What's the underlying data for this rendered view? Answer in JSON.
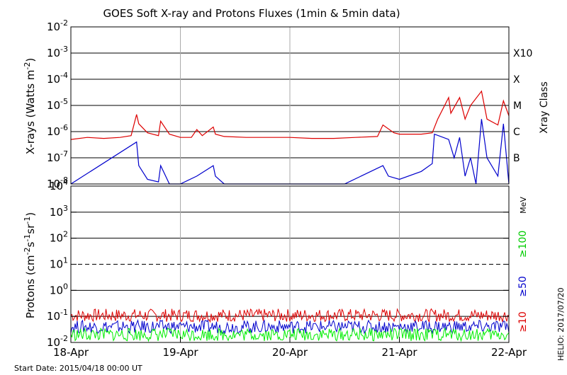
{
  "chart_data": [
    {
      "type": "line",
      "title": "GOES Soft X-ray and Protons Fluxes   (1min & 5min data)",
      "ylabel": "X-rays (Watts m",
      "ylabel_exponent": "-2",
      "yscale": "log",
      "ylim": [
        1e-08,
        0.01
      ],
      "y_ticks": [
        {
          "base": "10",
          "exp": "-8"
        },
        {
          "base": "10",
          "exp": "-7"
        },
        {
          "base": "10",
          "exp": "-6"
        },
        {
          "base": "10",
          "exp": "-5"
        },
        {
          "base": "10",
          "exp": "-4"
        },
        {
          "base": "10",
          "exp": "-3"
        },
        {
          "base": "10",
          "exp": "-2"
        }
      ],
      "xray_class_label": "Xray Class",
      "xray_classes": [
        {
          "label": "B",
          "value": 1e-07
        },
        {
          "label": "C",
          "value": 1e-06
        },
        {
          "label": "M",
          "value": 1e-05
        },
        {
          "label": "X",
          "value": 0.0001
        },
        {
          "label": "X10",
          "value": 0.001
        }
      ],
      "colors": {
        "long": "#dd0000",
        "short": "#0000cc"
      },
      "series": [
        {
          "color": "#dd0000",
          "x": [
            18.0,
            18.15,
            18.3,
            18.45,
            18.55,
            18.6,
            18.62,
            18.7,
            18.8,
            18.82,
            18.9,
            19.0,
            19.1,
            19.15,
            19.2,
            19.3,
            19.32,
            19.4,
            19.6,
            19.8,
            20.0,
            20.2,
            20.4,
            20.6,
            20.8,
            20.85,
            20.95,
            21.0,
            21.2,
            21.3,
            21.35,
            21.45,
            21.47,
            21.55,
            21.6,
            21.65,
            21.75,
            21.8,
            21.9,
            21.95,
            22.0
          ],
          "y": [
            5e-07,
            6e-07,
            5.5e-07,
            6e-07,
            7e-07,
            4.5e-06,
            2e-06,
            9e-07,
            7e-07,
            2.5e-06,
            8e-07,
            6e-07,
            6e-07,
            1.2e-06,
            7e-07,
            1.5e-06,
            8e-07,
            6.5e-07,
            6e-07,
            6e-07,
            6e-07,
            5.5e-07,
            5.5e-07,
            6e-07,
            6.5e-07,
            1.8e-06,
            9e-07,
            8e-07,
            8e-07,
            9e-07,
            3e-06,
            2e-05,
            5e-06,
            2e-05,
            3e-06,
            1e-05,
            3.5e-05,
            3e-06,
            1.8e-06,
            1.5e-05,
            4e-06
          ]
        },
        {
          "color": "#0000cc",
          "x": [
            18.0,
            18.6,
            18.62,
            18.7,
            18.8,
            18.82,
            18.9,
            19.0,
            19.15,
            19.3,
            19.32,
            19.4,
            20.0,
            20.5,
            20.85,
            20.9,
            21.0,
            21.2,
            21.3,
            21.32,
            21.45,
            21.5,
            21.55,
            21.6,
            21.65,
            21.7,
            21.75,
            21.8,
            21.9,
            21.95,
            22.0
          ],
          "y": [
            1e-08,
            4e-07,
            5e-08,
            1.5e-08,
            1.2e-08,
            5e-08,
            1e-08,
            1e-08,
            2e-08,
            5e-08,
            2e-08,
            1e-08,
            1e-08,
            1e-08,
            5e-08,
            2e-08,
            1.5e-08,
            3e-08,
            6e-08,
            8e-07,
            5e-07,
            1e-07,
            6e-07,
            2e-08,
            1e-07,
            1e-08,
            3e-06,
            1e-07,
            2e-08,
            2e-06,
            1e-08
          ]
        }
      ]
    },
    {
      "type": "line",
      "ylabel": "Protons (cm",
      "ylabel_parts": {
        "exp1": "-2",
        "mid": "s",
        "exp2": "-1",
        "mid2": "sr",
        "exp3": "-1",
        "end": ")"
      },
      "yscale": "log",
      "ylim": [
        0.01,
        10000
      ],
      "y_ticks": [
        {
          "base": "10",
          "exp": "-2"
        },
        {
          "base": "10",
          "exp": "-1"
        },
        {
          "base": "10",
          "exp": "0"
        },
        {
          "base": "10",
          "exp": "1"
        },
        {
          "base": "10",
          "exp": "2"
        },
        {
          "base": "10",
          "exp": "3"
        },
        {
          "base": "10",
          "exp": "4"
        }
      ],
      "threshold_line": 10,
      "unit_label": "MeV",
      "energy_labels": [
        {
          "label": "≥100",
          "color": "#00cc00"
        },
        {
          "label": "≥50",
          "color": "#0000cc"
        },
        {
          "label": "≥10",
          "color": "#dd0000"
        }
      ],
      "series": [
        {
          "color": "#dd0000",
          "baseline": 0.11
        },
        {
          "color": "#0000cc",
          "baseline": 0.04
        },
        {
          "color": "#00ee00",
          "baseline": 0.02
        }
      ]
    }
  ],
  "x_axis": {
    "xlim": [
      18,
      22
    ],
    "ticks": [
      {
        "value": 18,
        "label": "18-Apr"
      },
      {
        "value": 19,
        "label": "19-Apr"
      },
      {
        "value": 20,
        "label": "20-Apr"
      },
      {
        "value": 21,
        "label": "21-Apr"
      },
      {
        "value": 22,
        "label": "22-Apr"
      }
    ]
  },
  "start_date": "Start Date: 2015/04/18 00:00 UT",
  "credit": "HELIO: 2017/07/20"
}
